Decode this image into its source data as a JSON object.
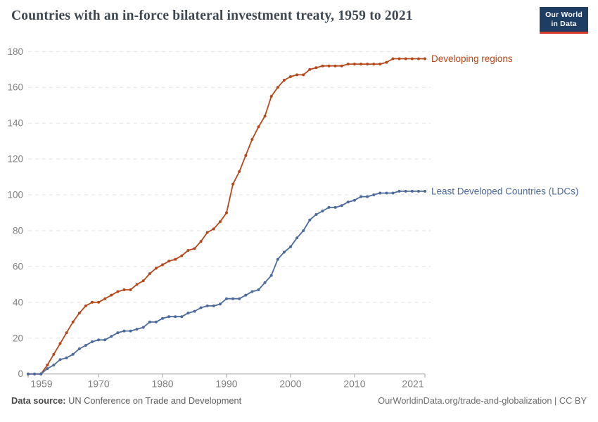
{
  "header": {
    "logo": {
      "line1": "Our World",
      "line2": "in Data"
    }
  },
  "chart_data": {
    "type": "line",
    "title": "Countries with an in-force bilateral investment treaty, 1959 to 2021",
    "x": [
      1959,
      1960,
      1961,
      1962,
      1963,
      1964,
      1965,
      1966,
      1967,
      1968,
      1969,
      1970,
      1971,
      1972,
      1973,
      1974,
      1975,
      1976,
      1977,
      1978,
      1979,
      1980,
      1981,
      1982,
      1983,
      1984,
      1985,
      1986,
      1987,
      1988,
      1989,
      1990,
      1991,
      1992,
      1993,
      1994,
      1995,
      1996,
      1997,
      1998,
      1999,
      2000,
      2001,
      2002,
      2003,
      2004,
      2005,
      2006,
      2007,
      2008,
      2009,
      2010,
      2011,
      2012,
      2013,
      2014,
      2015,
      2016,
      2017,
      2018,
      2019,
      2020,
      2021
    ],
    "series": [
      {
        "name": "Developing regions",
        "color": "#b5481b",
        "values": [
          0,
          0,
          0,
          5,
          11,
          17,
          23,
          29,
          34,
          38,
          40,
          40,
          42,
          44,
          46,
          47,
          47,
          50,
          52,
          56,
          59,
          61,
          63,
          64,
          66,
          69,
          70,
          74,
          79,
          81,
          85,
          90,
          106,
          113,
          122,
          131,
          138,
          144,
          155,
          160,
          164,
          166,
          167,
          167,
          170,
          171,
          172,
          172,
          172,
          172,
          173,
          173,
          173,
          173,
          173,
          173,
          174,
          176,
          176,
          176,
          176,
          176,
          176
        ]
      },
      {
        "name": "Least Developed Countries (LDCs)",
        "color": "#4c6a9c",
        "values": [
          0,
          0,
          0,
          3,
          5,
          8,
          9,
          11,
          14,
          16,
          18,
          19,
          19,
          21,
          23,
          24,
          24,
          25,
          26,
          29,
          29,
          31,
          32,
          32,
          32,
          34,
          35,
          37,
          38,
          38,
          39,
          42,
          42,
          42,
          44,
          46,
          47,
          51,
          55,
          64,
          68,
          71,
          76,
          80,
          86,
          89,
          91,
          93,
          93,
          94,
          96,
          97,
          99,
          99,
          100,
          101,
          101,
          101,
          102,
          102,
          102,
          102,
          102
        ]
      }
    ],
    "ylim": [
      0,
      180
    ],
    "yticks": [
      0,
      20,
      40,
      60,
      80,
      100,
      120,
      140,
      160,
      180
    ],
    "xticks": [
      1959,
      1970,
      1980,
      1990,
      2000,
      2010,
      2021
    ],
    "grid": "horizontal-dashed",
    "legend_position": "labels-at-line-ends",
    "axis_color": "#9e9e9e",
    "grid_color": "#e0e0e0",
    "tick_label_color": "#808080"
  },
  "footer": {
    "source_label": "Data source:",
    "source_text": " UN Conference on Trade and Development",
    "link": "OurWorldinData.org/trade-and-globalization | CC BY"
  }
}
